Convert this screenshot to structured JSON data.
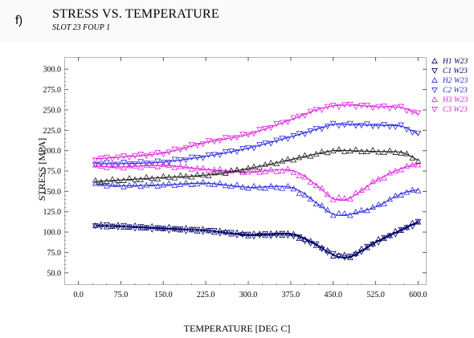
{
  "panel_label": "f)",
  "chart_data": {
    "type": "scatter",
    "title": "STRESS VS. TEMPERATURE",
    "subtitle": "SLOT 23 FOUP 1",
    "xlabel": "TEMPERATURE [DEG C]",
    "ylabel": "STRESS [MPA]",
    "xlim": [
      -25,
      615
    ],
    "ylim": [
      35,
      315
    ],
    "xticks": [
      "0.0",
      "75.0",
      "150.0",
      "225.0",
      "300.0",
      "375.0",
      "450.0",
      "525.0",
      "600.0"
    ],
    "yticks": [
      "50.0",
      "75.0",
      "100.0",
      "125.0",
      "150.0",
      "175.0",
      "200.0",
      "225.0",
      "250.0",
      "275.0",
      "300.0"
    ],
    "grid": false,
    "legend": "right",
    "series": [
      {
        "name": "H1 W23",
        "color": "#000066",
        "marker": "triangle-up",
        "x": [
          30,
          75,
          150,
          225,
          300,
          375,
          420,
          450,
          480,
          525,
          570,
          600
        ],
        "y": [
          108,
          107,
          105,
          102,
          97,
          98,
          85,
          72,
          70,
          88,
          103,
          113
        ]
      },
      {
        "name": "C1 W23",
        "color": "#000066",
        "marker": "triangle-down",
        "x": [
          30,
          75,
          150,
          225,
          300,
          375,
          420,
          450,
          480,
          525,
          570,
          600
        ],
        "y": [
          108,
          107,
          104,
          102,
          96,
          97,
          84,
          72,
          69,
          87,
          102,
          112
        ]
      },
      {
        "name": "H2 W23",
        "color": "#2a2ae0",
        "marker": "triangle-up",
        "x": [
          30,
          75,
          150,
          225,
          300,
          375,
          420,
          450,
          480,
          525,
          570,
          600
        ],
        "y": [
          159,
          157,
          158,
          160,
          155,
          155,
          136,
          122,
          122,
          131,
          147,
          152
        ]
      },
      {
        "name": "C2 W23",
        "color": "#2a2ae0",
        "marker": "triangle-down",
        "x": [
          30,
          75,
          150,
          225,
          300,
          375,
          420,
          450,
          480,
          525,
          570,
          600
        ],
        "y": [
          184,
          184,
          186,
          193,
          203,
          217,
          226,
          232,
          232,
          231,
          230,
          220
        ]
      },
      {
        "name": "H3 W23",
        "color": "#e020e0",
        "marker": "triangle-up",
        "x": [
          30,
          75,
          150,
          225,
          300,
          375,
          420,
          450,
          480,
          525,
          570,
          600
        ],
        "y": [
          181,
          180,
          182,
          177,
          174,
          176,
          158,
          141,
          142,
          163,
          178,
          184
        ]
      },
      {
        "name": "C3 W23",
        "color": "#e020e0",
        "marker": "triangle-down",
        "x": [
          30,
          75,
          150,
          225,
          300,
          375,
          420,
          450,
          480,
          525,
          570,
          600
        ],
        "y": [
          190,
          192,
          197,
          210,
          220,
          238,
          250,
          255,
          256,
          254,
          253,
          245
        ]
      },
      {
        "name": "",
        "color": "#222222",
        "marker": "triangle-up",
        "x": [
          30,
          75,
          150,
          225,
          300,
          375,
          420,
          450,
          480,
          525,
          570,
          600
        ],
        "y": [
          162,
          164,
          167,
          170,
          178,
          189,
          196,
          200,
          200,
          199,
          198,
          188
        ]
      }
    ]
  }
}
